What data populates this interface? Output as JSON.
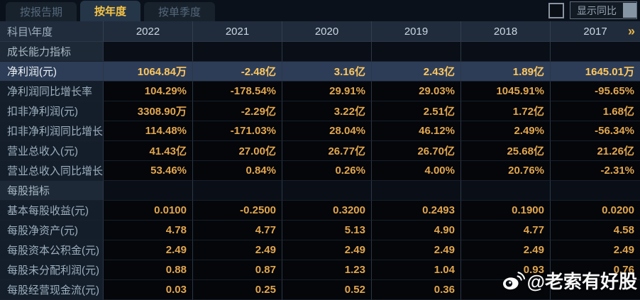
{
  "tabs": [
    {
      "label": "按报告期",
      "active": false
    },
    {
      "label": "按年度",
      "active": true
    },
    {
      "label": "按单季度",
      "active": false
    }
  ],
  "controls": {
    "compare_checkbox_checked": false,
    "compare_label": "显示同比"
  },
  "table": {
    "corner_header": "科目\\年度",
    "years": [
      "2022",
      "2021",
      "2020",
      "2019",
      "2018",
      "2017"
    ],
    "more_icon": "»",
    "rows": [
      {
        "type": "section",
        "label": "成长能力指标",
        "values": [
          "",
          "",
          "",
          "",
          "",
          ""
        ]
      },
      {
        "type": "data",
        "highlight": true,
        "label": "净利润(元)",
        "values": [
          "1064.84万",
          "-2.48亿",
          "3.16亿",
          "2.43亿",
          "1.89亿",
          "1645.01万"
        ]
      },
      {
        "type": "data",
        "label": "净利润同比增长率",
        "values": [
          "104.29%",
          "-178.54%",
          "29.91%",
          "29.03%",
          "1045.91%",
          "-95.65%"
        ]
      },
      {
        "type": "data",
        "label": "扣非净利润(元)",
        "values": [
          "3308.90万",
          "-2.29亿",
          "3.22亿",
          "2.51亿",
          "1.72亿",
          "1.68亿"
        ]
      },
      {
        "type": "data",
        "label": "扣非净利润同比增长率",
        "values": [
          "114.48%",
          "-171.03%",
          "28.04%",
          "46.12%",
          "2.49%",
          "-56.34%"
        ]
      },
      {
        "type": "data",
        "label": "营业总收入(元)",
        "values": [
          "41.43亿",
          "27.00亿",
          "26.77亿",
          "26.70亿",
          "25.68亿",
          "21.26亿"
        ]
      },
      {
        "type": "data",
        "label": "营业总收入同比增长率",
        "values": [
          "53.46%",
          "0.84%",
          "0.26%",
          "4.00%",
          "20.76%",
          "-2.31%"
        ]
      },
      {
        "type": "section",
        "label": "每股指标",
        "values": [
          "",
          "",
          "",
          "",
          "",
          ""
        ]
      },
      {
        "type": "data",
        "label": "基本每股收益(元)",
        "values": [
          "0.0100",
          "-0.2500",
          "0.3200",
          "0.2493",
          "0.1900",
          "0.0200"
        ]
      },
      {
        "type": "data",
        "label": "每股净资产(元)",
        "values": [
          "4.78",
          "4.77",
          "5.13",
          "4.90",
          "4.77",
          "4.58"
        ]
      },
      {
        "type": "data",
        "label": "每股资本公积金(元)",
        "values": [
          "2.49",
          "2.49",
          "2.49",
          "2.49",
          "2.49",
          "2.49"
        ]
      },
      {
        "type": "data",
        "label": "每股未分配利润(元)",
        "values": [
          "0.88",
          "0.87",
          "1.23",
          "1.04",
          "0.93",
          "0.76"
        ]
      },
      {
        "type": "data",
        "label": "每股经营现金流(元)",
        "values": [
          "0.03",
          "0.25",
          "0.52",
          "0.36",
          "",
          ""
        ]
      }
    ]
  },
  "watermark": {
    "text": "@老索有好股",
    "icon": "weibo-icon"
  },
  "colors": {
    "value_gold": "#e2a64d",
    "highlight_gold": "#ffc75e",
    "active_tab_text": "#f6c344",
    "highlight_row_bg": "#2d3d57",
    "header_bg": "#202c3c"
  }
}
